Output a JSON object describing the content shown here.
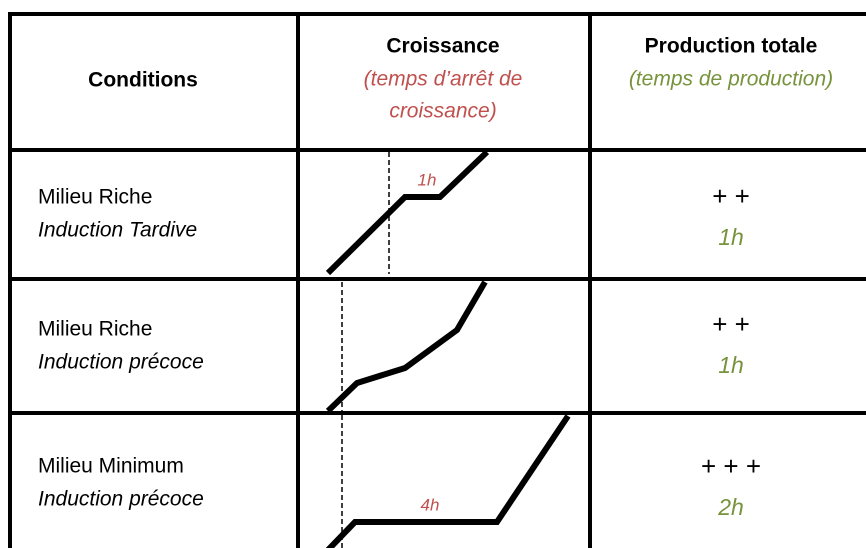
{
  "header": {
    "conditions": "Conditions",
    "growth": "Croissance",
    "growth_note_lines": [
      "(temps d’arrêt de",
      "croissance)"
    ],
    "production": "Production totale",
    "production_note": "(temps de production)"
  },
  "rows": [
    {
      "medium": "Milieu Riche",
      "induction": "Induction Tardive",
      "growth_label": "1h",
      "production": "+ +",
      "production_time": "1h"
    },
    {
      "medium": "Milieu Riche",
      "induction": "Induction précoce",
      "production": "+ +",
      "production_time": "1h"
    },
    {
      "medium": "Milieu Minimum",
      "induction": "Induction précoce",
      "growth_label": "4h",
      "production": "+ + +",
      "production_time": "2h"
    }
  ]
}
